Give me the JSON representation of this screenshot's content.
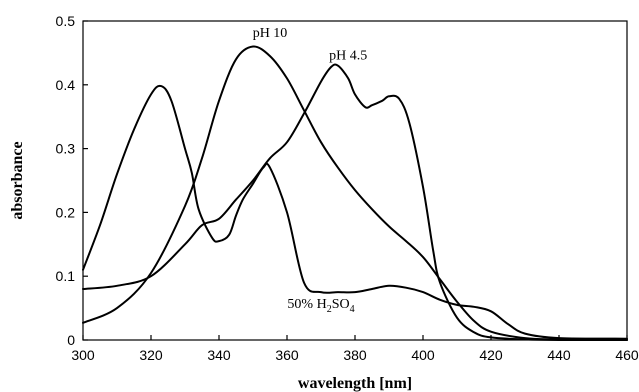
{
  "chart_data": {
    "type": "line",
    "xlabel": "wavelength  [nm]",
    "ylabel": "absorbance",
    "xlim": [
      300,
      460
    ],
    "ylim": [
      0,
      0.5
    ],
    "x_ticks": [
      300,
      320,
      340,
      360,
      380,
      400,
      420,
      440,
      460
    ],
    "y_ticks": [
      0,
      0.1,
      0.2,
      0.3,
      0.4,
      0.5
    ],
    "y_tick_labels": [
      "0",
      "0.1",
      "0.2",
      "0.3",
      "0.4",
      "0.5"
    ],
    "grid": false,
    "series": [
      {
        "name": "pH 10",
        "x": [
          300,
          310,
          320,
          330,
          335,
          340,
          345,
          350,
          355,
          360,
          365,
          370,
          375,
          380,
          385,
          390,
          395,
          400,
          405,
          410,
          415,
          420,
          430,
          440,
          460
        ],
        "y": [
          0.027,
          0.05,
          0.105,
          0.21,
          0.285,
          0.375,
          0.44,
          0.46,
          0.445,
          0.41,
          0.36,
          0.31,
          0.27,
          0.235,
          0.205,
          0.178,
          0.155,
          0.13,
          0.095,
          0.06,
          0.03,
          0.013,
          0.003,
          0.001,
          0.0
        ]
      },
      {
        "name": "pH 4.5",
        "x": [
          300,
          310,
          320,
          330,
          335,
          340,
          345,
          350,
          355,
          360,
          365,
          370,
          373,
          375,
          378,
          380,
          383,
          385,
          388,
          390,
          393,
          396,
          400,
          403,
          405,
          410,
          415,
          420,
          430,
          440,
          460
        ],
        "y": [
          0.08,
          0.085,
          0.1,
          0.15,
          0.18,
          0.19,
          0.22,
          0.25,
          0.285,
          0.31,
          0.355,
          0.405,
          0.428,
          0.43,
          0.41,
          0.385,
          0.365,
          0.368,
          0.375,
          0.382,
          0.378,
          0.34,
          0.24,
          0.14,
          0.09,
          0.035,
          0.012,
          0.004,
          0.001,
          0.0,
          0.0
        ]
      },
      {
        "name": "50% H2SO4",
        "x": [
          300,
          305,
          310,
          315,
          320,
          323,
          326,
          330,
          332,
          334,
          338,
          340,
          343,
          345,
          347,
          350,
          353,
          355,
          360,
          365,
          370,
          375,
          380,
          385,
          390,
          395,
          400,
          405,
          410,
          415,
          420,
          425,
          430,
          440,
          460
        ],
        "y": [
          0.11,
          0.18,
          0.26,
          0.33,
          0.385,
          0.398,
          0.375,
          0.3,
          0.262,
          0.205,
          0.16,
          0.155,
          0.165,
          0.195,
          0.22,
          0.245,
          0.27,
          0.27,
          0.2,
          0.09,
          0.075,
          0.075,
          0.075,
          0.08,
          0.085,
          0.082,
          0.075,
          0.063,
          0.055,
          0.052,
          0.045,
          0.025,
          0.01,
          0.003,
          0.002
        ]
      }
    ],
    "annotations": [
      {
        "text": "pH 10",
        "x": 355,
        "y": 0.475
      },
      {
        "text": "pH 4.5",
        "x": 378,
        "y": 0.44
      },
      {
        "text": "50% H",
        "subscript_1": "2",
        "text_2": "SO",
        "subscript_2": "4",
        "x": 370,
        "y": 0.05
      }
    ]
  }
}
